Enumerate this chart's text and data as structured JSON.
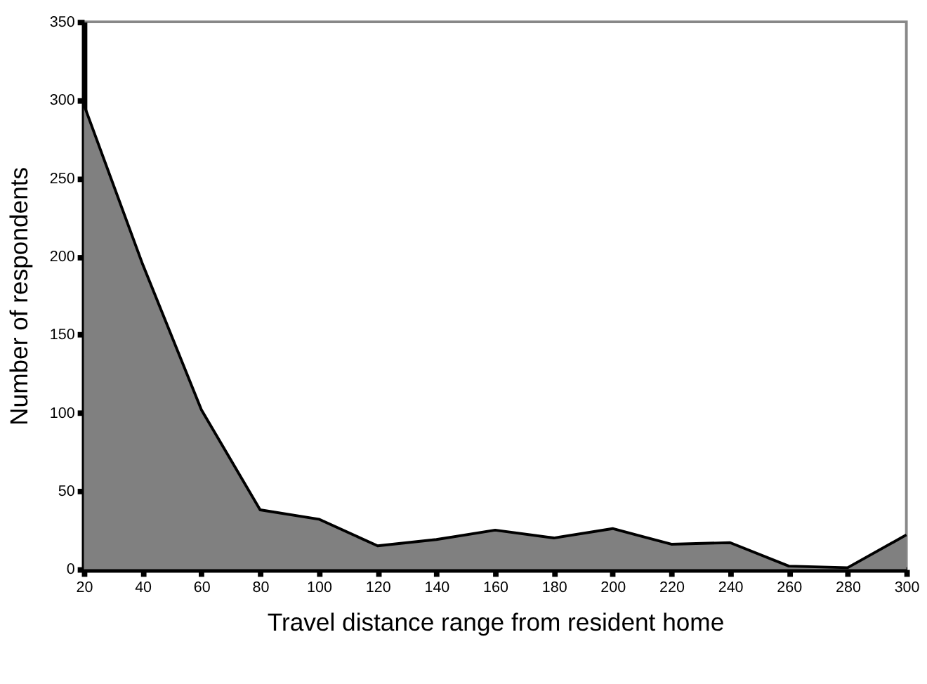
{
  "chart_data": {
    "type": "area",
    "xlabel": "Travel distance range from resident home",
    "ylabel": "Number of respondents",
    "x": [
      20,
      40,
      60,
      80,
      100,
      120,
      140,
      160,
      180,
      200,
      220,
      240,
      260,
      280,
      300
    ],
    "series": [
      {
        "color": "#808080",
        "values": [
          297,
          195,
          102,
          38,
          32,
          15,
          19,
          25,
          20,
          26,
          16,
          17,
          2,
          1,
          22
        ]
      }
    ],
    "xlim": [
      20,
      300
    ],
    "xticks": [
      20,
      40,
      60,
      80,
      100,
      120,
      140,
      160,
      180,
      200,
      220,
      240,
      260,
      280,
      300
    ],
    "ylim": [
      0,
      350
    ],
    "yticks": [
      0,
      50,
      100,
      150,
      200,
      250,
      300,
      350
    ],
    "grid": false
  }
}
